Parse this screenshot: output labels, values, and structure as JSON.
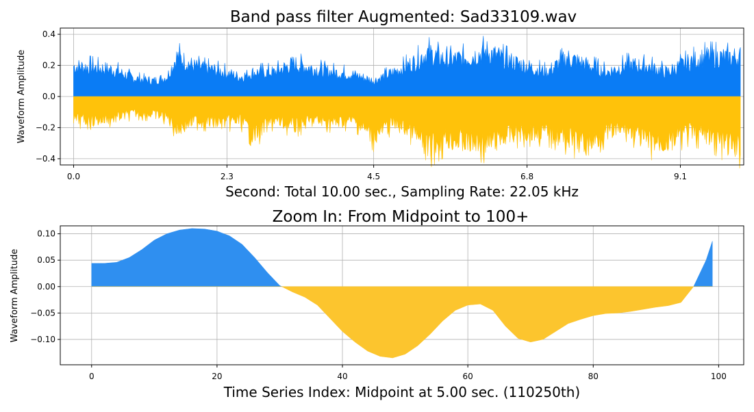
{
  "colors": {
    "positive": "#0a7cf5",
    "negative": "#ffc20a",
    "grid": "#b0b0b0",
    "axis": "#000000",
    "positive_zoom": "#2f8ff0",
    "negative_zoom": "#fcc52e"
  },
  "chart_data": [
    {
      "type": "area",
      "title": "Band pass filter Augmented: Sad33109.wav",
      "xlabel": "Second: Total 10.00 sec., Sampling Rate: 22.05 kHz",
      "ylabel": "Waveform Amplitude",
      "xlim": [
        -0.2,
        10.05
      ],
      "ylim": [
        -0.44,
        0.44
      ],
      "xticks": [
        0.0,
        2.3,
        4.5,
        6.8,
        9.1
      ],
      "xtick_labels": [
        "0.0",
        "2.3",
        "4.5",
        "6.8",
        "9.1"
      ],
      "yticks": [
        -0.4,
        -0.2,
        0.0,
        0.2,
        0.4
      ],
      "ytick_labels": [
        "−0.4",
        "−0.2",
        "0.0",
        "0.2",
        "0.4"
      ],
      "grid": true,
      "series": [
        {
          "name": "positive envelope",
          "color": "#0a7cf5",
          "x": [
            0.0,
            0.3,
            0.6,
            0.9,
            1.2,
            1.4,
            1.55,
            1.8,
            2.2,
            2.5,
            2.7,
            3.0,
            3.3,
            3.6,
            3.9,
            4.2,
            4.5,
            4.8,
            5.1,
            5.3,
            5.6,
            5.9,
            6.2,
            6.5,
            6.8,
            7.1,
            7.4,
            7.7,
            8.0,
            8.3,
            8.6,
            8.9,
            9.2,
            9.5,
            9.8,
            10.0
          ],
          "values": [
            0.25,
            0.24,
            0.22,
            0.15,
            0.13,
            0.16,
            0.33,
            0.25,
            0.21,
            0.16,
            0.2,
            0.2,
            0.27,
            0.23,
            0.2,
            0.18,
            0.13,
            0.2,
            0.28,
            0.36,
            0.3,
            0.32,
            0.37,
            0.3,
            0.25,
            0.2,
            0.32,
            0.26,
            0.2,
            0.26,
            0.25,
            0.2,
            0.28,
            0.33,
            0.32,
            0.33
          ]
        },
        {
          "name": "negative envelope",
          "color": "#ffc20a",
          "x": [
            0.0,
            0.3,
            0.6,
            0.9,
            1.2,
            1.4,
            1.55,
            1.8,
            2.2,
            2.5,
            2.7,
            3.0,
            3.3,
            3.6,
            3.9,
            4.2,
            4.5,
            4.8,
            5.1,
            5.3,
            5.6,
            5.9,
            6.2,
            6.5,
            6.8,
            7.1,
            7.4,
            7.7,
            8.0,
            8.3,
            8.6,
            8.9,
            9.2,
            9.5,
            9.8,
            10.0
          ],
          "values": [
            -0.19,
            -0.2,
            -0.18,
            -0.14,
            -0.15,
            -0.17,
            -0.27,
            -0.2,
            -0.22,
            -0.2,
            -0.32,
            -0.2,
            -0.25,
            -0.2,
            -0.22,
            -0.2,
            -0.33,
            -0.22,
            -0.3,
            -0.44,
            -0.35,
            -0.38,
            -0.4,
            -0.32,
            -0.3,
            -0.3,
            -0.35,
            -0.4,
            -0.3,
            -0.27,
            -0.38,
            -0.38,
            -0.3,
            -0.32,
            -0.4,
            -0.43
          ]
        }
      ]
    },
    {
      "type": "area",
      "title": "Zoom In: From Midpoint to 100+",
      "xlabel": "Time Series Index: Midpoint at 5.00 sec. (110250th)",
      "ylabel": "Waveform Amplitude",
      "xlim": [
        -5,
        104
      ],
      "ylim": [
        -0.148,
        0.115
      ],
      "xticks": [
        0,
        20,
        40,
        60,
        80,
        100
      ],
      "xtick_labels": [
        "0",
        "20",
        "40",
        "60",
        "80",
        "100"
      ],
      "yticks": [
        -0.1,
        -0.05,
        0.0,
        0.05,
        0.1
      ],
      "ytick_labels": [
        "−0.10",
        "−0.05",
        "0.00",
        "0.05",
        "0.10"
      ],
      "grid": true,
      "series": [
        {
          "name": "waveform",
          "color_positive": "#2f8ff0",
          "color_negative": "#fcc52e",
          "x": [
            0,
            2,
            4,
            6,
            8,
            10,
            12,
            14,
            16,
            18,
            20,
            22,
            24,
            26,
            28,
            30,
            32,
            34,
            36,
            38,
            40,
            42,
            44,
            46,
            48,
            50,
            52,
            54,
            56,
            58,
            60,
            62,
            64,
            66,
            68,
            70,
            72,
            74,
            76,
            78,
            80,
            82,
            84,
            86,
            88,
            90,
            92,
            94,
            96,
            98,
            99
          ],
          "values": [
            0.044,
            0.044,
            0.046,
            0.055,
            0.07,
            0.088,
            0.1,
            0.107,
            0.11,
            0.109,
            0.105,
            0.096,
            0.08,
            0.055,
            0.027,
            0.002,
            -0.01,
            -0.02,
            -0.035,
            -0.06,
            -0.085,
            -0.105,
            -0.122,
            -0.132,
            -0.135,
            -0.128,
            -0.112,
            -0.09,
            -0.065,
            -0.045,
            -0.035,
            -0.033,
            -0.045,
            -0.075,
            -0.098,
            -0.105,
            -0.1,
            -0.085,
            -0.07,
            -0.062,
            -0.055,
            -0.051,
            -0.05,
            -0.047,
            -0.043,
            -0.039,
            -0.036,
            -0.03,
            0.0,
            0.05,
            0.086
          ]
        }
      ]
    }
  ]
}
